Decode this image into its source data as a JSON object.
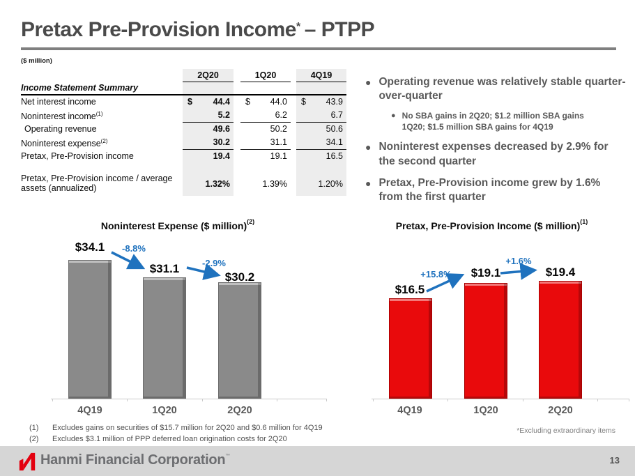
{
  "slide": {
    "title": "Pretax Pre-Provision Income",
    "title_sup": "*",
    "title_suffix": "– PTPP",
    "unit_note": "($ million)",
    "excluding_note": "*Excluding extraordinary items",
    "page_number": "13",
    "brand": "Hanmi Financial Corporation",
    "brand_tm": "™"
  },
  "table": {
    "section_label": "Income Statement Summary",
    "columns": [
      "2Q20",
      "1Q20",
      "4Q19"
    ],
    "rows": [
      {
        "label": "Net interest income",
        "dollar": "$",
        "values": [
          "44.4",
          "44.0",
          "43.9"
        ]
      },
      {
        "label": "Noninterest income",
        "sup": "(1)",
        "values": [
          "5.2",
          "6.2",
          "6.7"
        ]
      },
      {
        "label": "Operating revenue",
        "values": [
          "49.6",
          "50.2",
          "50.6"
        ]
      },
      {
        "label": "Noninterest expense",
        "sup": "(2)",
        "values": [
          "30.2",
          "31.1",
          "34.1"
        ]
      },
      {
        "label": "Pretax, Pre-Provision income",
        "values": [
          "19.4",
          "19.1",
          "16.5"
        ]
      },
      {
        "label": "Pretax, Pre-Provision income / average assets (annualized)",
        "values": [
          "1.32%",
          "1.39%",
          "1.20%"
        ]
      }
    ]
  },
  "bullets": [
    {
      "text": "Operating revenue was relatively stable quarter-over-quarter",
      "sub": "No SBA gains in 2Q20; $1.2 million SBA gains 1Q20; $1.5 million SBA gains for 4Q19"
    },
    {
      "text": "Noninterest expenses decreased by 2.9% for the second quarter"
    },
    {
      "text": "Pretax, Pre-Provision income grew by 1.6% from the first quarter"
    }
  ],
  "chart_data": [
    {
      "type": "bar",
      "title": "Noninterest Expense ($ million)",
      "title_sup": "(2)",
      "categories": [
        "4Q19",
        "1Q20",
        "2Q20"
      ],
      "values": [
        34.1,
        31.1,
        30.2
      ],
      "value_labels": [
        "$34.1",
        "$31.1",
        "$30.2"
      ],
      "annotations": [
        {
          "label": "-8.8%"
        },
        {
          "label": "-2.9%"
        }
      ],
      "bar_color": "#8a8a8a",
      "bar_border": "#6c6c6c",
      "ylim": [
        10,
        34.1
      ],
      "xlabel": "",
      "ylabel": "",
      "grid": false,
      "legend": "none"
    },
    {
      "type": "bar",
      "title": "Pretax, Pre-Provision Income ($ million)",
      "title_sup": "(1)",
      "categories": [
        "4Q19",
        "1Q20",
        "2Q20"
      ],
      "values": [
        16.5,
        19.1,
        19.4
      ],
      "value_labels": [
        "$16.5",
        "$19.1",
        "$19.4"
      ],
      "annotations": [
        {
          "label": "+15.8%"
        },
        {
          "label": "+1.6%"
        }
      ],
      "bar_color": "#e90a0c",
      "bar_border": "#a80000",
      "ylim": [
        0,
        19.4
      ],
      "xlabel": "",
      "ylabel": "",
      "grid": false,
      "legend": "none"
    }
  ],
  "footnotes": [
    {
      "num": "(1)",
      "text": "Excludes gains on securities of $15.7 million for 2Q20 and $0.6 million for 4Q19"
    },
    {
      "num": "(2)",
      "text": "Excludes $3.1 million of PPP deferred loan origination costs for 2Q20"
    }
  ],
  "colors": {
    "accent_blue": "#1f72be",
    "table_shade": "#ededed",
    "footer_bar": "#d6d6d6",
    "title_gray": "#4a4a4a",
    "brand_red": "#e3000f"
  }
}
